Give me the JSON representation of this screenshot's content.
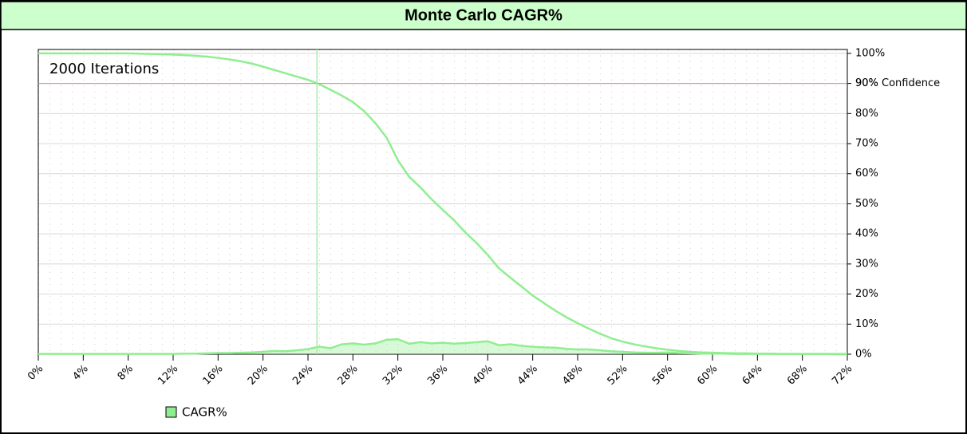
{
  "chart_data": {
    "type": "line",
    "title": "Monte Carlo CAGR%",
    "annotation": "2000 Iterations",
    "x": [
      0,
      1,
      2,
      3,
      4,
      5,
      6,
      7,
      8,
      9,
      10,
      11,
      12,
      13,
      14,
      15,
      16,
      17,
      18,
      19,
      20,
      21,
      22,
      23,
      24,
      25,
      26,
      27,
      28,
      29,
      30,
      31,
      32,
      33,
      34,
      35,
      36,
      37,
      38,
      39,
      40,
      41,
      42,
      43,
      44,
      45,
      46,
      47,
      48,
      49,
      50,
      51,
      52,
      53,
      54,
      55,
      56,
      57,
      58,
      59,
      60,
      61,
      62,
      63,
      64,
      65,
      66,
      67,
      68,
      69,
      70,
      71,
      72
    ],
    "series": [
      {
        "color": "#90ee90",
        "area": false,
        "values": [
          100,
          100,
          100,
          100,
          100,
          100,
          100,
          100,
          100,
          99.9,
          99.8,
          99.7,
          99.6,
          99.4,
          99.2,
          98.9,
          98.5,
          98.0,
          97.4,
          96.6,
          95.6,
          94.5,
          93.4,
          92.3,
          91.2,
          89.8,
          87.9,
          86.0,
          83.8,
          80.8,
          76.8,
          72,
          64.5,
          59,
          55.5,
          51.5,
          48,
          44.5,
          40.5,
          37,
          33,
          28.5,
          25.5,
          22.5,
          19.5,
          17,
          14.5,
          12.3,
          10.3,
          8.5,
          6.8,
          5.3,
          4.2,
          3.3,
          2.6,
          2.0,
          1.5,
          1.1,
          0.8,
          0.6,
          0.5,
          0.4,
          0.3,
          0.3,
          0.2,
          0.2,
          0.1,
          0.1,
          0.1,
          0.1,
          0.1,
          0,
          0
        ]
      },
      {
        "name": "CAGR%",
        "color": "#90ee90",
        "area": true,
        "values": [
          0.1,
          0.1,
          0.1,
          0.1,
          0.1,
          0.1,
          0.1,
          0.1,
          0.1,
          0.1,
          0.1,
          0.1,
          0.1,
          0.2,
          0.2,
          0.3,
          0.4,
          0.4,
          0.5,
          0.6,
          0.8,
          1.1,
          1.0,
          1.3,
          1.7,
          2.5,
          2.0,
          3.3,
          3.6,
          3.2,
          3.6,
          4.8,
          5.0,
          3.5,
          4.0,
          3.6,
          3.8,
          3.5,
          3.7,
          4.0,
          4.3,
          3.0,
          3.3,
          2.8,
          2.5,
          2.3,
          2.2,
          1.8,
          1.6,
          1.6,
          1.3,
          1.0,
          0.8,
          0.6,
          0.5,
          0.5,
          0.6,
          0.4,
          0.3,
          0.2,
          0.2,
          0.2,
          0.1,
          0.1,
          0.1,
          0.1,
          0.1,
          0.1,
          0.1,
          0.1,
          0.1,
          0.1,
          0.1
        ]
      }
    ],
    "hline": {
      "value": 90,
      "label": "90% Confidence",
      "color": "#e08c8c"
    },
    "vline": {
      "value": 24.8,
      "color": "#a8eea8"
    },
    "xlim": [
      0,
      72
    ],
    "xticks": [
      {
        "value": 0,
        "label": "0%"
      },
      {
        "value": 4,
        "label": "4%"
      },
      {
        "value": 8,
        "label": "8%"
      },
      {
        "value": 12,
        "label": "12%"
      },
      {
        "value": 16,
        "label": "16%"
      },
      {
        "value": 20,
        "label": "20%"
      },
      {
        "value": 24,
        "label": "24%"
      },
      {
        "value": 28,
        "label": "28%"
      },
      {
        "value": 32,
        "label": "32%"
      },
      {
        "value": 36,
        "label": "36%"
      },
      {
        "value": 40,
        "label": "40%"
      },
      {
        "value": 44,
        "label": "44%"
      },
      {
        "value": 48,
        "label": "48%"
      },
      {
        "value": 52,
        "label": "52%"
      },
      {
        "value": 56,
        "label": "56%"
      },
      {
        "value": 60,
        "label": "60%"
      },
      {
        "value": 64,
        "label": "64%"
      },
      {
        "value": 68,
        "label": "68%"
      },
      {
        "value": 72,
        "label": "72%"
      }
    ],
    "ylim": [
      0,
      101.3
    ],
    "yticks": [
      {
        "value": 0,
        "label": "0%"
      },
      {
        "value": 10,
        "label": "10%"
      },
      {
        "value": 20,
        "label": "20%"
      },
      {
        "value": 30,
        "label": "30%"
      },
      {
        "value": 40,
        "label": "40%"
      },
      {
        "value": 50,
        "label": "50%"
      },
      {
        "value": 60,
        "label": "60%"
      },
      {
        "value": 70,
        "label": "70%"
      },
      {
        "value": 80,
        "label": "80%"
      },
      {
        "value": 90,
        "label": "90%"
      },
      {
        "value": 100,
        "label": "100%"
      }
    ],
    "grid": true,
    "legend": "bottom-left"
  }
}
